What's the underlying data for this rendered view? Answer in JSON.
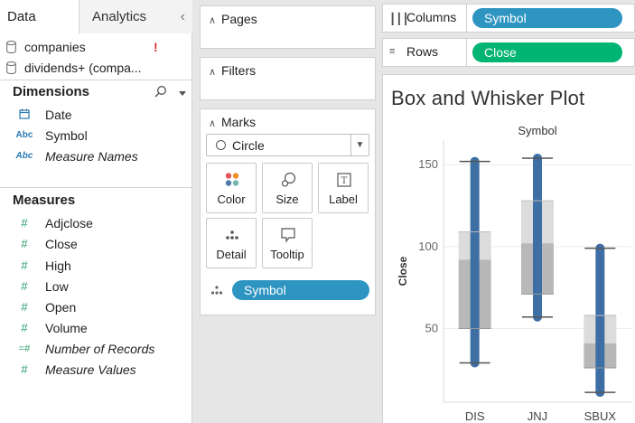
{
  "data_pane": {
    "tabs": [
      {
        "label": "Data",
        "active": true
      },
      {
        "label": "Analytics",
        "active": false
      }
    ],
    "collapse_icon": "chevron-left-icon",
    "data_sources": [
      {
        "label": "companies",
        "warning": "!"
      },
      {
        "label": "dividends+ (compa..."
      }
    ],
    "dimensions_header": "Dimensions",
    "dimensions": [
      {
        "icon": "calendar-icon",
        "label": "Date",
        "italic": false
      },
      {
        "icon": "Abc",
        "label": "Symbol",
        "italic": false
      },
      {
        "icon": "Abc",
        "label": "Measure Names",
        "italic": true
      }
    ],
    "measures_header": "Measures",
    "measures": [
      {
        "icon": "#",
        "label": "Adjclose",
        "italic": false
      },
      {
        "icon": "#",
        "label": "Close",
        "italic": false
      },
      {
        "icon": "#",
        "label": "High",
        "italic": false
      },
      {
        "icon": "#",
        "label": "Low",
        "italic": false
      },
      {
        "icon": "#",
        "label": "Open",
        "italic": false
      },
      {
        "icon": "#",
        "label": "Volume",
        "italic": false
      },
      {
        "icon": "=#",
        "label": "Number of Records",
        "italic": true
      },
      {
        "icon": "#",
        "label": "Measure Values",
        "italic": true
      }
    ]
  },
  "cards": {
    "pages": "Pages",
    "filters": "Filters",
    "marks": "Marks",
    "mark_type": "Circle",
    "mark_buttons": [
      {
        "name": "color",
        "label": "Color"
      },
      {
        "name": "size",
        "label": "Size"
      },
      {
        "name": "label",
        "label": "Label"
      },
      {
        "name": "detail",
        "label": "Detail"
      },
      {
        "name": "tooltip",
        "label": "Tooltip"
      }
    ],
    "detail_pill": "Symbol"
  },
  "shelves": {
    "columns_label": "Columns",
    "columns_pill": "Symbol",
    "rows_label": "Rows",
    "rows_pill": "Close"
  },
  "view": {
    "title": "Box and Whisker Plot"
  },
  "colors": {
    "pill_blue": "#2e95c2",
    "pill_green": "#00b473",
    "mark_blue": "#3d6fa5",
    "box_upper": "#dcdcdc",
    "box_lower": "#b8b8b8"
  },
  "chart_data": {
    "type": "box",
    "header": "Symbol",
    "ylabel": "Close",
    "categories": [
      "DIS",
      "JNJ",
      "SBUX"
    ],
    "yticks": [
      50,
      100,
      150
    ],
    "ylim": [
      5,
      165
    ],
    "boxes": [
      {
        "category": "DIS",
        "min": 29,
        "q1": 50,
        "median": 92,
        "q3": 109,
        "max": 152
      },
      {
        "category": "JNJ",
        "min": 57,
        "q1": 71,
        "median": 102,
        "q3": 128,
        "max": 154
      },
      {
        "category": "SBUX",
        "min": 11,
        "q1": 26,
        "median": 41,
        "q3": 58,
        "max": 99
      }
    ],
    "point_ranges": [
      {
        "category": "DIS",
        "from": 29,
        "to": 152
      },
      {
        "category": "JNJ",
        "from": 57,
        "to": 154
      },
      {
        "category": "SBUX",
        "from": 11,
        "to": 99
      }
    ]
  }
}
